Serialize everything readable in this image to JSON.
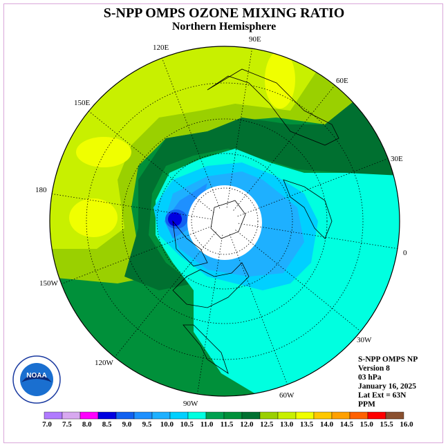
{
  "title": "S-NPP OMPS OZONE MIXING RATIO",
  "subtitle": "Northern Hemisphere",
  "longitude_labels": [
    {
      "text": "90E",
      "name": "lon-90e"
    },
    {
      "text": "60E",
      "name": "lon-60e"
    },
    {
      "text": "30E",
      "name": "lon-30e"
    },
    {
      "text": "0",
      "name": "lon-0"
    },
    {
      "text": "30W",
      "name": "lon-30w"
    },
    {
      "text": "60W",
      "name": "lon-60w"
    },
    {
      "text": "90W",
      "name": "lon-90w"
    },
    {
      "text": "120W",
      "name": "lon-120w"
    },
    {
      "text": "150W",
      "name": "lon-150w"
    },
    {
      "text": "180",
      "name": "lon-180"
    },
    {
      "text": "150E",
      "name": "lon-150e"
    },
    {
      "text": "120E",
      "name": "lon-120e"
    }
  ],
  "info": {
    "instrument": "S-NPP OMPS NP",
    "version": "Version 8",
    "level": "03 hPa",
    "date": "January 16, 2025",
    "lat_ext": "Lat Ext = 63N",
    "units": "PPM"
  },
  "colorbar": {
    "ticks": [
      "7.0",
      "7.5",
      "8.0",
      "8.5",
      "9.0",
      "9.5",
      "10.0",
      "10.5",
      "11.0",
      "11.5",
      "12.0",
      "12.5",
      "13.0",
      "13.5",
      "14.0",
      "14.5",
      "15.0",
      "15.5",
      "16.0"
    ],
    "colors": [
      "#b07aff",
      "#d8a8f0",
      "#ff00ff",
      "#0000e0",
      "#1060f0",
      "#1e90ff",
      "#1eb0ff",
      "#00d0ff",
      "#00ffe0",
      "#00a050",
      "#00903a",
      "#007030",
      "#9ad000",
      "#c8f000",
      "#f0ff00",
      "#ffc800",
      "#ffa000",
      "#ff6000",
      "#ff0000",
      "#8a5030"
    ]
  },
  "logo": {
    "text": "NOAA"
  },
  "colors": {
    "pole_white": "#ffffff",
    "coast": "#000000"
  }
}
